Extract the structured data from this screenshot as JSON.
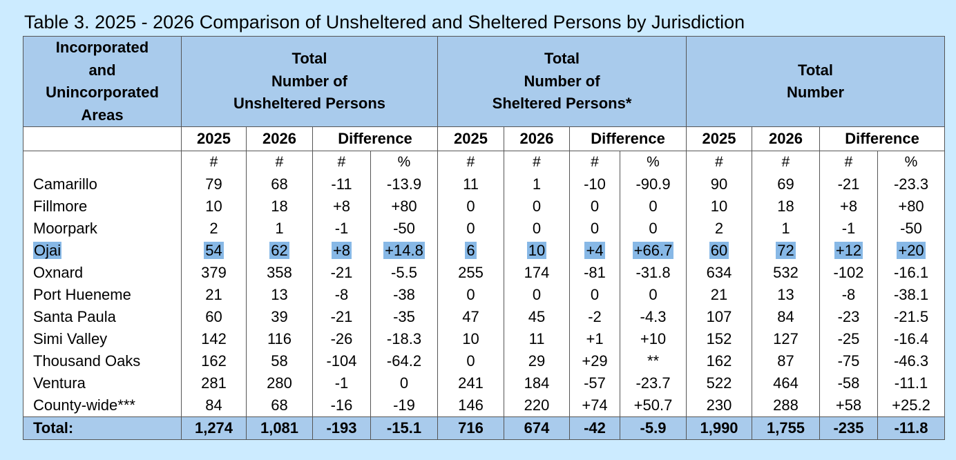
{
  "title": "Table 3. 2025 - 2026 Comparison of Unsheltered and Sheltered Persons by Jurisdiction",
  "header": {
    "area": [
      "Incorporated",
      "and",
      "Unincorporated",
      "Areas"
    ],
    "unsheltered": [
      "Total",
      "Number of",
      "Unsheltered Persons"
    ],
    "sheltered": [
      "Total",
      "Number of",
      "Sheltered Persons*"
    ],
    "total": [
      "Total",
      "Number"
    ]
  },
  "subheader": [
    "2025",
    "2026",
    "Difference",
    "2025",
    "2026",
    "Difference",
    "2025",
    "2026",
    "Difference"
  ],
  "units": [
    "#",
    "#",
    "#",
    "%",
    "#",
    "#",
    "#",
    "%",
    "#",
    "#",
    "#",
    "%"
  ],
  "rows": [
    {
      "area": "Camarillo",
      "values": [
        "79",
        "68",
        "-11",
        "-13.9",
        "11",
        "1",
        "-10",
        "-90.9",
        "90",
        "69",
        "-21",
        "-23.3"
      ]
    },
    {
      "area": "Fillmore",
      "values": [
        "10",
        "18",
        "+8",
        "+80",
        "0",
        "0",
        "0",
        "0",
        "10",
        "18",
        "+8",
        "+80"
      ]
    },
    {
      "area": "Moorpark",
      "values": [
        "2",
        "1",
        "-1",
        "-50",
        "0",
        "0",
        "0",
        "0",
        "2",
        "1",
        "-1",
        "-50"
      ]
    },
    {
      "area": "Ojai",
      "highlight": true,
      "values": [
        "54",
        "62",
        "+8",
        "+14.8",
        "6",
        "10",
        "+4",
        "+66.7",
        "60",
        "72",
        "+12",
        "+20"
      ]
    },
    {
      "area": "Oxnard",
      "values": [
        "379",
        "358",
        "-21",
        "-5.5",
        "255",
        "174",
        "-81",
        "-31.8",
        "634",
        "532",
        "-102",
        "-16.1"
      ]
    },
    {
      "area": "Port Hueneme",
      "values": [
        "21",
        "13",
        "-8",
        "-38",
        "0",
        "0",
        "0",
        "0",
        "21",
        "13",
        "-8",
        "-38.1"
      ]
    },
    {
      "area": "Santa Paula",
      "values": [
        "60",
        "39",
        "-21",
        "-35",
        "47",
        "45",
        "-2",
        "-4.3",
        "107",
        "84",
        "-23",
        "-21.5"
      ]
    },
    {
      "area": "Simi Valley",
      "values": [
        "142",
        "116",
        "-26",
        "-18.3",
        "10",
        "11",
        "+1",
        "+10",
        "152",
        "127",
        "-25",
        "-16.4"
      ]
    },
    {
      "area": "Thousand Oaks",
      "values": [
        "162",
        "58",
        "-104",
        "-64.2",
        "0",
        "29",
        "+29",
        "**",
        "162",
        "87",
        "-75",
        "-46.3"
      ]
    },
    {
      "area": "Ventura",
      "values": [
        "281",
        "280",
        "-1",
        "0",
        "241",
        "184",
        "-57",
        "-23.7",
        "522",
        "464",
        "-58",
        "-11.1"
      ]
    },
    {
      "area": "County-wide***",
      "values": [
        "84",
        "68",
        "-16",
        "-19",
        "146",
        "220",
        "+74",
        "+50.7",
        "230",
        "288",
        "+58",
        "+25.2"
      ]
    }
  ],
  "total": {
    "area": "Total:",
    "values": [
      "1,274",
      "1,081",
      "-193",
      "-15.1",
      "716",
      "674",
      "-42",
      "-5.9",
      "1,990",
      "1,755",
      "-235",
      "-11.8"
    ]
  },
  "colors": {
    "page_bg": "#ccebff",
    "header_bg": "#a9cbec",
    "highlight": "#87b8e6"
  }
}
